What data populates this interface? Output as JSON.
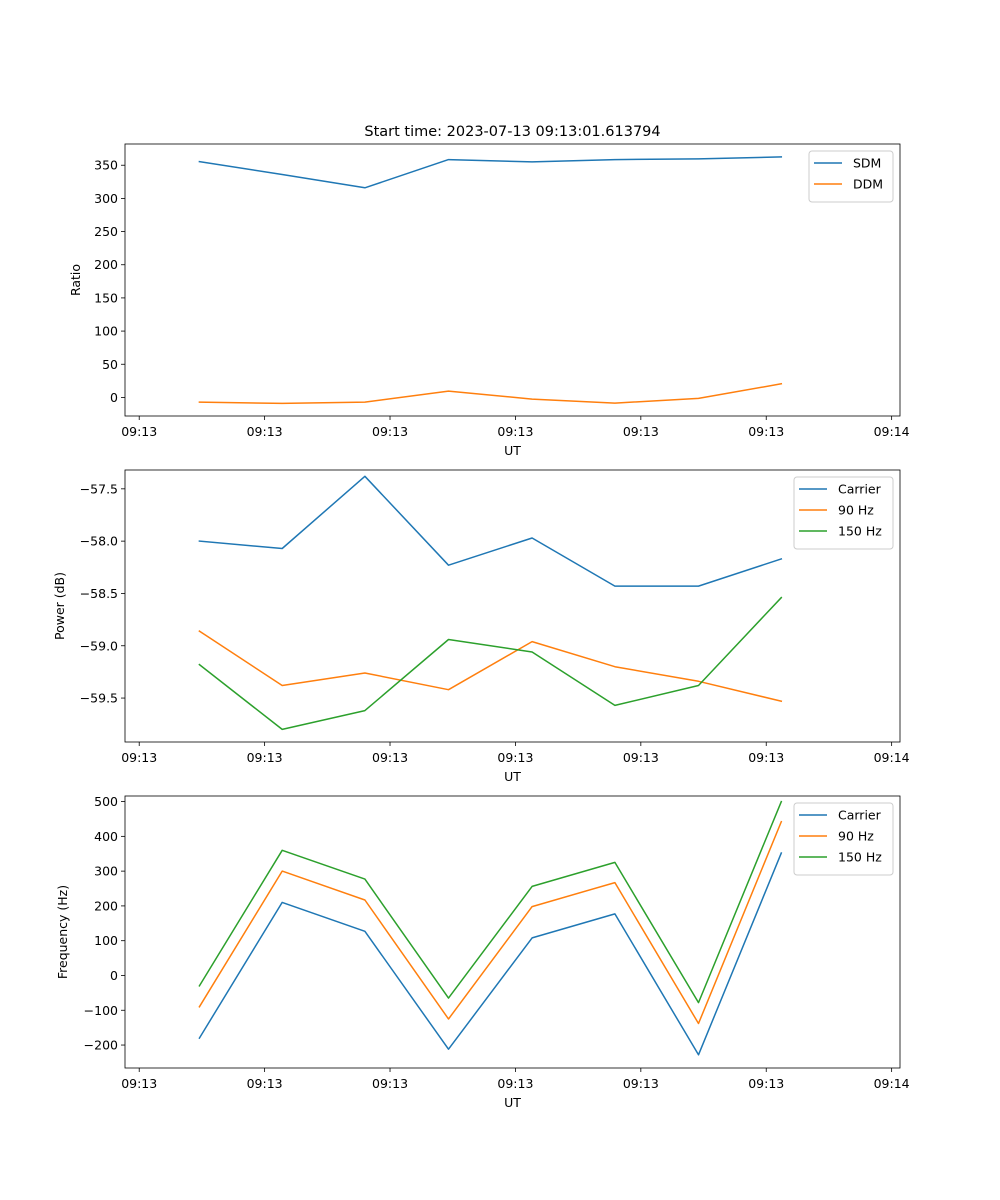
{
  "figure": {
    "title": "Start time: 2023-07-13 09:13:01.613794"
  },
  "colors": {
    "blue": "#1f77b4",
    "orange": "#ff7f0e",
    "green": "#2ca02c"
  },
  "chart_data": [
    {
      "type": "line",
      "title": "Start time: 2023-07-13 09:13:01.613794",
      "xlabel": "UT",
      "ylabel": "Ratio",
      "xlim": [
        -0.37,
        8.9
      ],
      "ylim": [
        -28,
        382
      ],
      "xticks": [
        -0.2,
        1.3,
        2.8,
        4.3,
        5.8,
        7.3,
        8.8
      ],
      "xtick_labels": [
        "09:13",
        "09:13",
        "09:13",
        "09:13",
        "09:13",
        "09:13",
        "09:14"
      ],
      "yticks": [
        0,
        50,
        100,
        150,
        200,
        250,
        300,
        350
      ],
      "ytick_labels": [
        "0",
        "50",
        "100",
        "150",
        "200",
        "250",
        "300",
        "350"
      ],
      "legend": "top-right",
      "x": [
        0.52,
        1.51,
        2.5,
        3.5,
        4.5,
        5.49,
        6.49,
        7.48
      ],
      "series": [
        {
          "name": "SDM",
          "color": "#1f77b4",
          "values": [
            355.5,
            336,
            316,
            358.5,
            355,
            358.5,
            359.5,
            362.5
          ]
        },
        {
          "name": "DDM",
          "color": "#ff7f0e",
          "values": [
            -7,
            -9,
            -7,
            9.5,
            -2.5,
            -8.5,
            -1.5,
            20.5
          ]
        }
      ]
    },
    {
      "type": "line",
      "xlabel": "UT",
      "ylabel": "Power (dB)",
      "xlim": [
        -0.37,
        8.9
      ],
      "ylim": [
        -59.92,
        -57.32
      ],
      "xticks": [
        -0.2,
        1.3,
        2.8,
        4.3,
        5.8,
        7.3,
        8.8
      ],
      "xtick_labels": [
        "09:13",
        "09:13",
        "09:13",
        "09:13",
        "09:13",
        "09:13",
        "09:14"
      ],
      "yticks": [
        -59.5,
        -59.0,
        -58.5,
        -58.0,
        -57.5
      ],
      "ytick_labels": [
        "−59.5",
        "−59.0",
        "−58.5",
        "−58.0",
        "−57.5"
      ],
      "legend": "top-right",
      "x": [
        0.52,
        1.51,
        2.5,
        3.5,
        4.5,
        5.49,
        6.49,
        7.48
      ],
      "series": [
        {
          "name": "Carrier",
          "color": "#1f77b4",
          "values": [
            -58.0,
            -58.07,
            -57.38,
            -58.23,
            -57.97,
            -58.43,
            -58.43,
            -58.17
          ]
        },
        {
          "name": "90 Hz",
          "color": "#ff7f0e",
          "values": [
            -58.86,
            -59.38,
            -59.26,
            -59.42,
            -58.96,
            -59.2,
            -59.34,
            -59.53
          ]
        },
        {
          "name": "150 Hz",
          "color": "#2ca02c",
          "values": [
            -59.18,
            -59.8,
            -59.62,
            -58.94,
            -59.06,
            -59.57,
            -59.38,
            -58.54
          ]
        }
      ]
    },
    {
      "type": "line",
      "xlabel": "UT",
      "ylabel": "Frequency (Hz)",
      "xlim": [
        -0.37,
        8.9
      ],
      "ylim": [
        -266,
        516
      ],
      "xticks": [
        -0.2,
        1.3,
        2.8,
        4.3,
        5.8,
        7.3,
        8.8
      ],
      "xtick_labels": [
        "09:13",
        "09:13",
        "09:13",
        "09:13",
        "09:13",
        "09:13",
        "09:14"
      ],
      "yticks": [
        -200,
        -100,
        0,
        100,
        200,
        300,
        400,
        500
      ],
      "ytick_labels": [
        "−200",
        "−100",
        "0",
        "100",
        "200",
        "300",
        "400",
        "500"
      ],
      "legend": "top-right",
      "x": [
        0.52,
        1.51,
        2.5,
        3.5,
        4.5,
        5.49,
        6.49,
        7.48
      ],
      "series": [
        {
          "name": "Carrier",
          "color": "#1f77b4",
          "values": [
            -180,
            210,
            127,
            -212,
            108,
            177,
            -228,
            352
          ]
        },
        {
          "name": "90 Hz",
          "color": "#ff7f0e",
          "values": [
            -90,
            300,
            217,
            -125,
            198,
            267,
            -138,
            442
          ]
        },
        {
          "name": "150 Hz",
          "color": "#2ca02c",
          "values": [
            -30,
            360,
            277,
            -65,
            256,
            325,
            -78,
            500
          ]
        }
      ]
    }
  ]
}
